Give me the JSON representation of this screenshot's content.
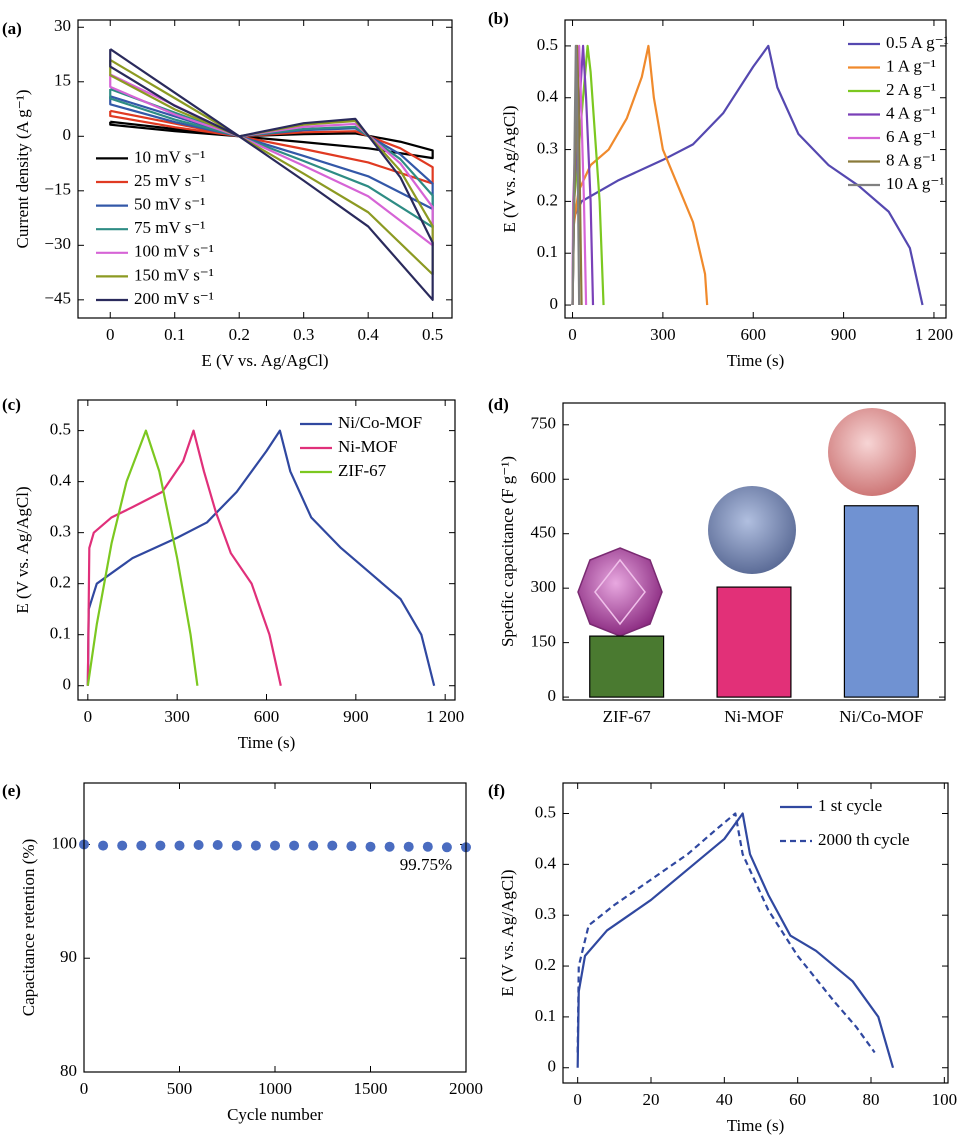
{
  "chart_data": [
    {
      "type": "line",
      "panel_label": "(a)",
      "xlabel": "E (V vs. Ag/AgCl)",
      "ylabel": "Current density (A g⁻¹)",
      "xlim": [
        -0.05,
        0.53
      ],
      "ylim": [
        -50,
        32
      ],
      "xticks": [
        0,
        0.1,
        0.2,
        0.3,
        0.4,
        0.5
      ],
      "yticks": [
        {
          "value": -45,
          "label": "−45"
        },
        {
          "value": -30,
          "label": "−30"
        },
        {
          "value": -15,
          "label": "−15"
        },
        0,
        15,
        30
      ],
      "legend": "lower left",
      "x": [
        0,
        0.1,
        0.2,
        0.3,
        0.4,
        0.5,
        0.5,
        0.45,
        0.38,
        0.3,
        0.2,
        0.1,
        0,
        0
      ],
      "series": [
        {
          "name": "10 mV s⁻¹",
          "color": "#000000",
          "values": [
            4,
            2,
            0,
            -1.6,
            -3.3,
            -6,
            -3.9,
            -1.5,
            0.8,
            0.6,
            0,
            1.4,
            3.2,
            4
          ]
        },
        {
          "name": "25 mV s⁻¹",
          "color": "#e03a22",
          "values": [
            7,
            3.5,
            0,
            -3.5,
            -7.2,
            -13,
            -8.5,
            -3.3,
            1.4,
            1.1,
            0,
            2.5,
            5.6,
            7
          ]
        },
        {
          "name": "50 mV s⁻¹",
          "color": "#3358a8",
          "values": [
            11,
            5.5,
            0,
            -5.4,
            -11,
            -20,
            -13,
            -5,
            2.2,
            1.7,
            0,
            3.9,
            8.8,
            11
          ]
        },
        {
          "name": "75 mV s⁻¹",
          "color": "#2e8c84",
          "values": [
            13,
            6.5,
            0,
            -6.8,
            -13.8,
            -25,
            -16.3,
            -6.3,
            2.6,
            2,
            0,
            4.6,
            10.4,
            13
          ]
        },
        {
          "name": "100 mV s⁻¹",
          "color": "#d664d6",
          "values": [
            17,
            8.5,
            0,
            -8.1,
            -16.5,
            -30,
            -19.5,
            -7.5,
            3.4,
            2.6,
            0,
            6,
            13.6,
            17
          ]
        },
        {
          "name": "150 mV s⁻¹",
          "color": "#8c9a22",
          "values": [
            21,
            10.5,
            0,
            -10.3,
            -20.9,
            -38,
            -24.7,
            -9.5,
            4.2,
            3.2,
            0,
            7.4,
            16.8,
            21
          ]
        },
        {
          "name": "200 mV s⁻¹",
          "color": "#2a2a5c",
          "values": [
            24,
            12,
            0,
            -12.2,
            -24.8,
            -45,
            -29.3,
            -11.3,
            4.8,
            3.6,
            0,
            8.4,
            19.2,
            24
          ]
        }
      ]
    },
    {
      "type": "line",
      "panel_label": "(b)",
      "xlabel": "Time (s)",
      "ylabel": "E (V vs. Ag/AgCl)",
      "xlim": [
        -25,
        1240
      ],
      "ylim": [
        -0.025,
        0.55
      ],
      "xticks": [
        0,
        300,
        600,
        900,
        {
          "value": 1200,
          "label": "1 200"
        }
      ],
      "yticks": [
        0,
        0.1,
        0.2,
        0.3,
        0.4,
        0.5
      ],
      "legend": "upper right",
      "series": [
        {
          "name": "0.5 A g⁻¹",
          "color": "#5548b0",
          "x": [
            0,
            5,
            30,
            150,
            300,
            400,
            500,
            600,
            650,
            680,
            750,
            850,
            950,
            1050,
            1120,
            1162
          ],
          "values": [
            0,
            0.17,
            0.2,
            0.24,
            0.28,
            0.31,
            0.37,
            0.46,
            0.5,
            0.42,
            0.33,
            0.27,
            0.23,
            0.18,
            0.11,
            0
          ]
        },
        {
          "name": "1 A g⁻¹",
          "color": "#f08a2c",
          "x": [
            0,
            3,
            20,
            60,
            120,
            180,
            230,
            252,
            270,
            300,
            350,
            400,
            440,
            447
          ],
          "values": [
            0,
            0.15,
            0.22,
            0.27,
            0.3,
            0.36,
            0.44,
            0.5,
            0.4,
            0.3,
            0.23,
            0.16,
            0.06,
            0
          ]
        },
        {
          "name": "2 A g⁻¹",
          "color": "#7cc820",
          "x": [
            0,
            5,
            50,
            60,
            90,
            103
          ],
          "values": [
            0,
            0.2,
            0.5,
            0.45,
            0.2,
            0
          ]
        },
        {
          "name": "4 A g⁻¹",
          "color": "#7a40b8",
          "x": [
            0,
            3,
            35,
            45,
            60,
            68
          ],
          "values": [
            0,
            0.2,
            0.5,
            0.4,
            0.2,
            0
          ]
        },
        {
          "name": "6 A g⁻¹",
          "color": "#d664d6",
          "x": [
            0,
            2,
            22,
            28,
            38,
            45
          ],
          "values": [
            0,
            0.2,
            0.5,
            0.4,
            0.2,
            0
          ]
        },
        {
          "name": "8 A g⁻¹",
          "color": "#8a7a3a",
          "x": [
            0,
            15,
            20,
            30
          ],
          "values": [
            0,
            0.5,
            0.4,
            0
          ]
        },
        {
          "name": "10 A g⁻¹",
          "color": "#808080",
          "x": [
            0,
            11,
            15,
            22
          ],
          "values": [
            0,
            0.5,
            0.4,
            0
          ]
        }
      ]
    },
    {
      "type": "line",
      "panel_label": "(c)",
      "xlabel": "Time (s)",
      "ylabel": "E (V vs. Ag/AgCl)",
      "xlim": [
        -33,
        1233
      ],
      "ylim": [
        -0.028,
        0.56
      ],
      "xticks": [
        0,
        300,
        600,
        900,
        {
          "value": 1200,
          "label": "1 200"
        }
      ],
      "yticks": [
        0,
        0.1,
        0.2,
        0.3,
        0.4,
        0.5
      ],
      "legend": "upper right",
      "series": [
        {
          "name": "Ni/Co-MOF",
          "color": "#3048a0",
          "x": [
            0,
            3,
            30,
            150,
            300,
            400,
            500,
            600,
            645,
            680,
            750,
            850,
            950,
            1050,
            1120,
            1163
          ],
          "values": [
            0,
            0.15,
            0.2,
            0.25,
            0.29,
            0.32,
            0.38,
            0.46,
            0.5,
            0.42,
            0.33,
            0.27,
            0.22,
            0.17,
            0.1,
            0
          ]
        },
        {
          "name": "Ni-MOF",
          "color": "#e0307a",
          "x": [
            0,
            5,
            20,
            80,
            150,
            250,
            320,
            355,
            390,
            430,
            480,
            550,
            610,
            648
          ],
          "values": [
            0,
            0.27,
            0.3,
            0.33,
            0.35,
            0.38,
            0.44,
            0.5,
            0.42,
            0.34,
            0.26,
            0.2,
            0.1,
            0
          ]
        },
        {
          "name": "ZIF-67",
          "color": "#7cc820",
          "x": [
            0,
            30,
            80,
            130,
            195,
            240,
            300,
            345,
            368
          ],
          "values": [
            0,
            0.12,
            0.28,
            0.4,
            0.5,
            0.42,
            0.25,
            0.1,
            0
          ]
        }
      ]
    },
    {
      "type": "bar",
      "panel_label": "(d)",
      "ylabel": "Specific capacitance (F g⁻¹)",
      "ylim": [
        -8,
        810
      ],
      "yticks": [
        0,
        150,
        300,
        450,
        600,
        750
      ],
      "categories": [
        "ZIF-67",
        "Ni-MOF",
        "Ni/Co-MOF"
      ],
      "values": [
        168,
        303,
        527
      ],
      "colors": [
        "#4a7a30",
        "#e23078",
        "#7092d2"
      ]
    },
    {
      "type": "scatter",
      "panel_label": "(e)",
      "xlabel": "Cycle number",
      "ylabel": "Capacitance retention (%)",
      "xlim": [
        0,
        2000
      ],
      "ylim": [
        80,
        105.4
      ],
      "xticks": [
        0,
        500,
        1000,
        1500,
        2000
      ],
      "yticks": [
        80,
        90,
        100
      ],
      "color": "#4a6cc0",
      "x": [
        0,
        100,
        200,
        300,
        400,
        500,
        600,
        700,
        800,
        900,
        1000,
        1100,
        1200,
        1300,
        1400,
        1500,
        1600,
        1700,
        1800,
        1900,
        2000
      ],
      "values": [
        100,
        99.9,
        99.9,
        99.9,
        99.9,
        99.9,
        99.95,
        99.95,
        99.9,
        99.9,
        99.9,
        99.9,
        99.9,
        99.9,
        99.85,
        99.8,
        99.8,
        99.8,
        99.8,
        99.75,
        99.75
      ],
      "annotation": "99.75%"
    },
    {
      "type": "line",
      "panel_label": "(f)",
      "xlabel": "Time (s)",
      "ylabel": "E (V vs. Ag/AgCl)",
      "xlim": [
        -4,
        101
      ],
      "ylim": [
        -0.03,
        0.56
      ],
      "xticks": [
        0,
        20,
        40,
        60,
        80,
        100
      ],
      "yticks": [
        0,
        0.1,
        0.2,
        0.3,
        0.4,
        0.5
      ],
      "legend": "upper right",
      "series": [
        {
          "name": "1 st cycle",
          "color": "#3048a0",
          "x": [
            0,
            0.3,
            2,
            8,
            20,
            30,
            40,
            45,
            47,
            52,
            58,
            65,
            75,
            82,
            86
          ],
          "values": [
            0,
            0.15,
            0.22,
            0.27,
            0.33,
            0.39,
            0.45,
            0.5,
            0.42,
            0.34,
            0.26,
            0.23,
            0.17,
            0.1,
            0
          ]
        },
        {
          "name": "2000 th cycle",
          "color": "#3048a0",
          "dashed": true,
          "x": [
            0,
            0.3,
            3,
            10,
            20,
            30,
            38,
            43,
            45,
            52,
            60,
            70,
            76,
            81
          ],
          "values": [
            0.03,
            0.2,
            0.28,
            0.32,
            0.37,
            0.42,
            0.47,
            0.5,
            0.42,
            0.31,
            0.22,
            0.13,
            0.08,
            0.03
          ]
        }
      ]
    }
  ]
}
